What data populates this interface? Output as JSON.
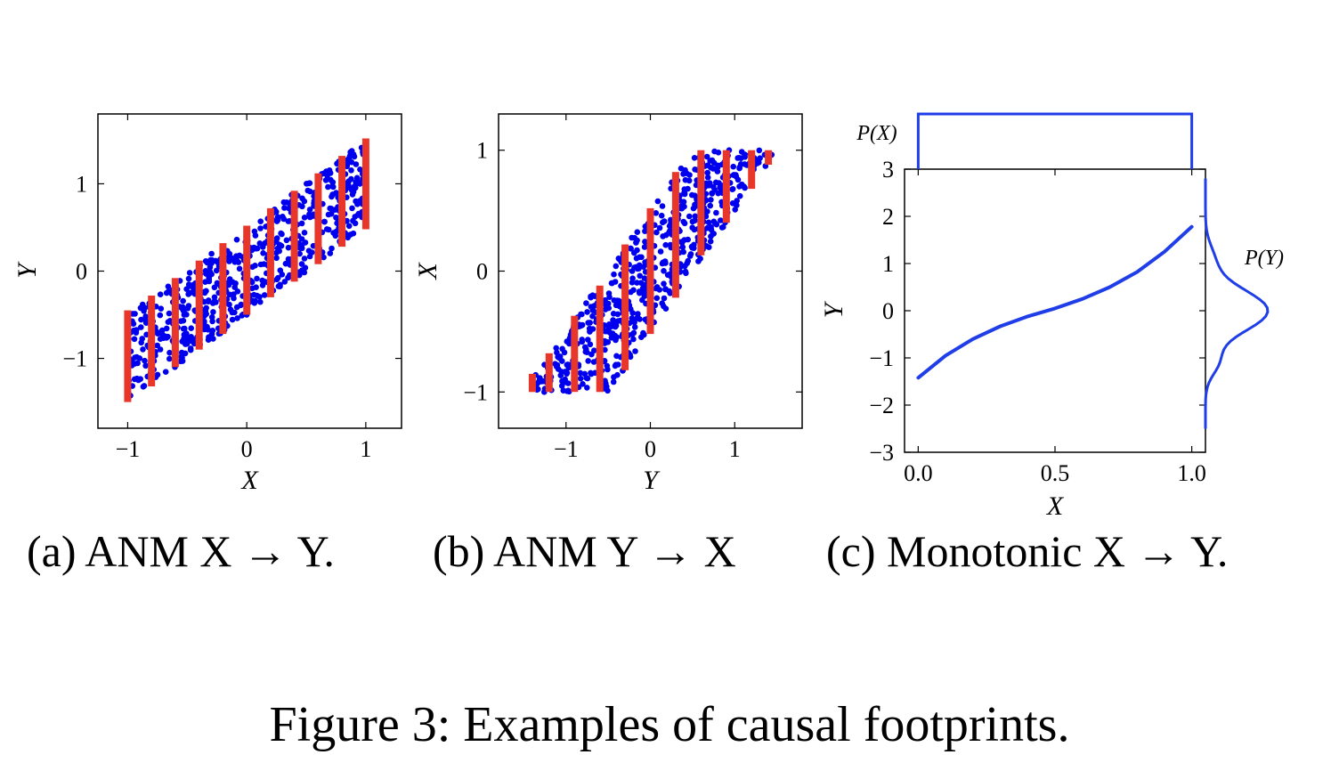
{
  "figure_caption": "Figure 3: Examples of causal footprints.",
  "subcaptions": {
    "a": "(a) ANM X → Y.",
    "b": "(b) ANM Y → X",
    "c": "(c) Monotonic X → Y."
  },
  "colors": {
    "points": "#0000ee",
    "bars": "#e8372a",
    "curve": "#1f3ee8",
    "axes": "#000000"
  },
  "chart_data": [
    {
      "id": "a",
      "type": "scatter",
      "xlabel": "X",
      "ylabel": "Y",
      "xlim": [
        -1.25,
        1.3
      ],
      "ylim": [
        -1.8,
        1.8
      ],
      "xticks": [
        -1,
        0,
        1
      ],
      "xtick_labels": [
        "−1",
        "0",
        "1"
      ],
      "yticks": [
        -1,
        0,
        1
      ],
      "ytick_labels": [
        "−1",
        "0",
        "1"
      ],
      "points": "noisy linear relation y ≈ x + noise (uniform, width ≈ 1.0); ~600 points",
      "function": {
        "slope": 1.0,
        "intercept": 0.0,
        "noise_halfwidth": 0.5
      },
      "bars": [
        {
          "x": -1.0,
          "y0": -1.5,
          "y1": -0.45
        },
        {
          "x": -0.8,
          "y0": -1.32,
          "y1": -0.28
        },
        {
          "x": -0.6,
          "y0": -1.1,
          "y1": -0.08
        },
        {
          "x": -0.4,
          "y0": -0.9,
          "y1": 0.12
        },
        {
          "x": -0.2,
          "y0": -0.72,
          "y1": 0.32
        },
        {
          "x": 0.0,
          "y0": -0.5,
          "y1": 0.52
        },
        {
          "x": 0.2,
          "y0": -0.3,
          "y1": 0.72
        },
        {
          "x": 0.4,
          "y0": -0.12,
          "y1": 0.92
        },
        {
          "x": 0.6,
          "y0": 0.08,
          "y1": 1.12
        },
        {
          "x": 0.8,
          "y0": 0.28,
          "y1": 1.32
        },
        {
          "x": 1.0,
          "y0": 0.48,
          "y1": 1.52
        }
      ]
    },
    {
      "id": "b",
      "type": "scatter",
      "xlabel": "Y",
      "ylabel": "X",
      "xlim": [
        -1.8,
        1.8
      ],
      "ylim": [
        -1.3,
        1.3
      ],
      "xticks": [
        -1,
        0,
        1
      ],
      "xtick_labels": [
        "−1",
        "0",
        "1"
      ],
      "yticks": [
        -1,
        0,
        1
      ],
      "ytick_labels": [
        "−1",
        "0",
        "1"
      ],
      "function": {
        "slope": 1.0,
        "intercept": 0.0,
        "noise_halfwidth": 0.5
      },
      "bars": [
        {
          "x": -1.4,
          "y0": -1.0,
          "y1": -0.85
        },
        {
          "x": -1.2,
          "y0": -1.0,
          "y1": -0.68
        },
        {
          "x": -0.9,
          "y0": -1.0,
          "y1": -0.37
        },
        {
          "x": -0.6,
          "y0": -1.0,
          "y1": -0.12
        },
        {
          "x": -0.3,
          "y0": -0.82,
          "y1": 0.22
        },
        {
          "x": 0.0,
          "y0": -0.52,
          "y1": 0.52
        },
        {
          "x": 0.3,
          "y0": -0.22,
          "y1": 0.82
        },
        {
          "x": 0.6,
          "y0": 0.13,
          "y1": 1.0
        },
        {
          "x": 0.9,
          "y0": 0.4,
          "y1": 1.0
        },
        {
          "x": 1.2,
          "y0": 0.68,
          "y1": 1.0
        },
        {
          "x": 1.4,
          "y0": 0.88,
          "y1": 1.0
        }
      ]
    },
    {
      "id": "c",
      "type": "line",
      "xlabel": "X",
      "ylabel": "Y",
      "xlim": [
        -0.05,
        1.05
      ],
      "ylim": [
        -3,
        3
      ],
      "xticks": [
        0.0,
        0.5,
        1.0
      ],
      "xtick_labels": [
        "0.0",
        "0.5",
        "1.0"
      ],
      "yticks": [
        -3,
        -2,
        -1,
        0,
        1,
        2,
        3
      ],
      "ytick_labels": [
        "−3",
        "−2",
        "−1",
        "0",
        "1",
        "2",
        "3"
      ],
      "curve": {
        "x": [
          0.0,
          0.1,
          0.2,
          0.3,
          0.4,
          0.5,
          0.6,
          0.7,
          0.8,
          0.9,
          1.0
        ],
        "y": [
          -1.42,
          -0.95,
          -0.6,
          -0.33,
          -0.12,
          0.05,
          0.25,
          0.5,
          0.82,
          1.25,
          1.78
        ]
      },
      "marginal_x_label": "P(X)",
      "marginal_y_label": "P(Y)",
      "marginal_x": "uniform on [0, 1]",
      "marginal_y": "peaked density centred at 0"
    }
  ]
}
